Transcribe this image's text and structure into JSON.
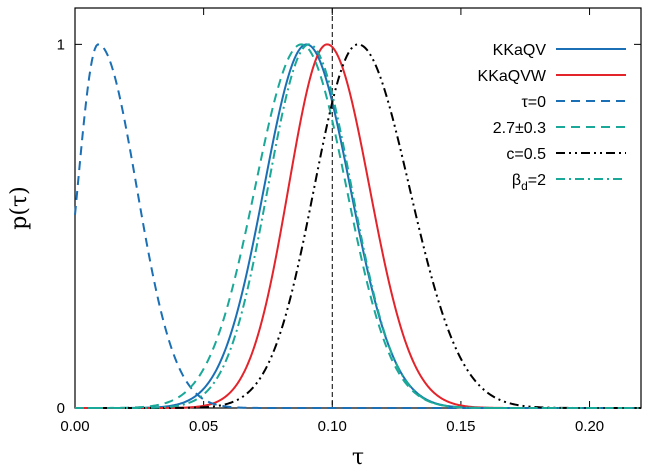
{
  "chart_data": {
    "type": "line",
    "title": "",
    "xlabel": "τ",
    "ylabel": "p(τ)",
    "xlim": [
      0.0,
      0.22
    ],
    "ylim": [
      0,
      1.1
    ],
    "x_ticks": [
      0.0,
      0.05,
      0.1,
      0.15,
      0.2
    ],
    "x_tick_labels": [
      "0.00",
      "0.05",
      "0.10",
      "0.15",
      "0.20"
    ],
    "y_ticks": [
      0,
      1
    ],
    "y_tick_labels": [
      "0",
      "1"
    ],
    "reference_line": {
      "x": 0.1,
      "style": "dashed",
      "color": "#000000"
    },
    "grid": false,
    "legend_position": "top-right",
    "series": [
      {
        "name": "KKaQV",
        "style": "solid",
        "color": "#1a6fb5",
        "center": 0.09,
        "width_left": 0.0165,
        "width_right": 0.017
      },
      {
        "name": "KKaQVW",
        "style": "solid",
        "color": "#e3242b",
        "center": 0.098,
        "width_left": 0.015,
        "width_right": 0.0165
      },
      {
        "name": "τ=0",
        "style": "dashed",
        "color": "#1a6fb5",
        "center": 0.009,
        "width_left": 0.008,
        "width_right": 0.015
      },
      {
        "name": "2.7±0.3",
        "style": "dashed",
        "color": "#1aa898",
        "center": 0.088,
        "width_left": 0.018,
        "width_right": 0.0175
      },
      {
        "name": "c=0.5",
        "style": "dashdotdot",
        "color": "#000000",
        "center": 0.11,
        "width_left": 0.017,
        "width_right": 0.02
      },
      {
        "name": "β_d=2",
        "label_base": "β",
        "label_sub": "d",
        "label_rest": "=2",
        "style": "dashdot",
        "color": "#1aa898",
        "center": 0.091,
        "width_left": 0.016,
        "width_right": 0.0165
      }
    ]
  }
}
